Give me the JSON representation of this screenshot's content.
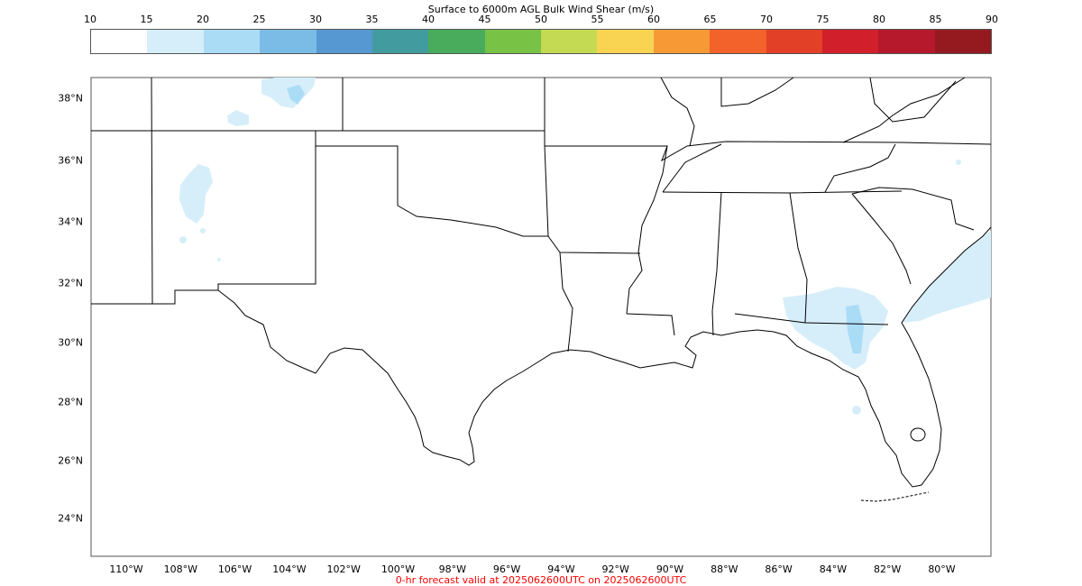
{
  "title": "Surface to 6000m AGL Bulk Wind Shear (m/s)",
  "footer": "0-hr forecast valid at 2025062600UTC on 2025062600UTC",
  "colorbar": {
    "ticks": [
      "10",
      "15",
      "20",
      "25",
      "30",
      "35",
      "40",
      "45",
      "50",
      "55",
      "60",
      "65",
      "70",
      "75",
      "80",
      "85",
      "90"
    ],
    "colors": [
      "#ffffff",
      "#d6eefa",
      "#abdcf6",
      "#7bbce6",
      "#5598d2",
      "#429c9f",
      "#48ac5c",
      "#78c246",
      "#c3da52",
      "#f9d452",
      "#f79a36",
      "#f2622a",
      "#e34028",
      "#d11f2c",
      "#b5192b",
      "#951a20"
    ]
  },
  "map": {
    "lat_labels": [
      "38°N",
      "36°N",
      "34°N",
      "32°N",
      "30°N",
      "28°N",
      "26°N",
      "24°N"
    ],
    "lon_labels": [
      "110°W",
      "108°W",
      "106°W",
      "104°W",
      "102°W",
      "100°W",
      "98°W",
      "96°W",
      "94°W",
      "92°W",
      "90°W",
      "88°W",
      "86°W",
      "84°W",
      "82°W",
      "80°W"
    ],
    "border_color": "#000000",
    "shading_color": "#d6eefa",
    "shading_dark_color": "#abdcf6"
  }
}
